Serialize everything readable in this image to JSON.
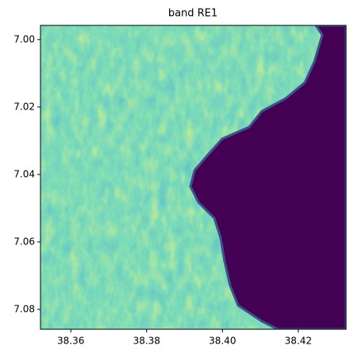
{
  "chart_data": {
    "type": "image",
    "title": "band RE1",
    "xlim": [
      38.352,
      38.4326
    ],
    "ylim": [
      7.0859,
      6.9958
    ],
    "xticks": [
      38.36,
      38.38,
      {
        "value": 38.4,
        "label": "38.40"
      },
      38.42
    ],
    "yticks": [
      {
        "value": 7,
        "label": "7.00"
      },
      7.02,
      7.04,
      7.06,
      7.08
    ]
  }
}
